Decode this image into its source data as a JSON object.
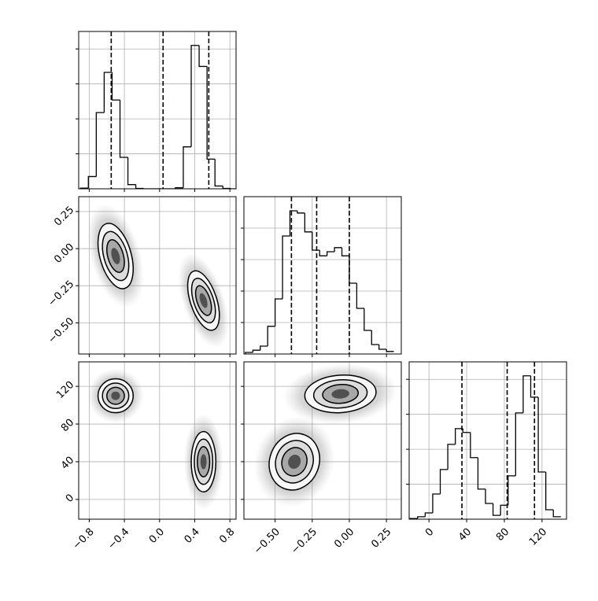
{
  "chart_data": {
    "type": "corner",
    "grid": true,
    "params": [
      {
        "lim": [
          -0.92,
          0.87
        ],
        "ticks": [
          {
            "value": -0.8,
            "label": "−0.8"
          },
          {
            "value": -0.4,
            "label": "−0.4"
          },
          {
            "value": 0,
            "label": "0.0"
          },
          0.4,
          0.8
        ]
      },
      {
        "lim": [
          -0.71,
          0.35
        ],
        "ticks": [
          {
            "value": -0.5,
            "label": "−0.50"
          },
          {
            "value": -0.25,
            "label": "−0.25"
          },
          {
            "value": 0,
            "label": "0.00"
          },
          0.25
        ]
      },
      {
        "lim": [
          -21,
          146
        ],
        "ticks": [
          0,
          40,
          80,
          120
        ]
      }
    ],
    "diag": [
      {
        "bins": [
          -0.9,
          -0.81,
          -0.72,
          -0.63,
          -0.54,
          -0.45,
          -0.36,
          -0.27,
          -0.18,
          -0.09,
          0,
          0.09,
          0.18,
          0.27,
          0.36,
          0.45,
          0.54,
          0.63,
          0.72,
          0.81,
          0.9
        ],
        "counts": [
          2,
          35,
          218,
          333,
          254,
          90,
          12,
          1,
          0,
          0,
          0,
          0,
          3,
          120,
          410,
          350,
          85,
          8,
          1,
          0
        ],
        "ylim": [
          0,
          450
        ],
        "yticks": [
          100,
          200,
          300,
          400
        ],
        "quantiles": [
          -0.55,
          0.04,
          0.56
        ]
      },
      {
        "bins": [
          -0.7,
          -0.65,
          -0.6,
          -0.55,
          -0.5,
          -0.45,
          -0.4,
          -0.35,
          -0.3,
          -0.25,
          -0.2,
          -0.15,
          -0.1,
          -0.05,
          0,
          0.05,
          0.1,
          0.15,
          0.2,
          0.25,
          0.3
        ],
        "counts": [
          5,
          12,
          25,
          88,
          175,
          375,
          455,
          448,
          388,
          330,
          312,
          325,
          338,
          312,
          225,
          145,
          75,
          30,
          15,
          8
        ],
        "ylim": [
          0,
          500
        ],
        "yticks": [
          100,
          200,
          300,
          400
        ],
        "quantiles": [
          -0.39,
          -0.22,
          0
        ]
      },
      {
        "bins": [
          -20,
          -12,
          -4,
          4,
          12,
          20,
          28,
          36,
          44,
          52,
          60,
          68,
          76,
          84,
          92,
          100,
          108,
          116,
          124,
          132,
          140
        ],
        "counts": [
          2,
          7,
          18,
          72,
          142,
          214,
          259,
          248,
          176,
          86,
          45,
          11,
          40,
          124,
          304,
          410,
          349,
          135,
          27,
          7
        ],
        "ylim": [
          0,
          450
        ],
        "yticks": [
          100,
          200,
          300,
          400
        ],
        "quantiles": [
          35,
          83,
          112
        ]
      }
    ],
    "pairs": [
      {
        "clusters": [
          {
            "x": -0.5,
            "y": -0.05,
            "sx": 0.1,
            "sy": 0.11,
            "rho": -0.4
          },
          {
            "x": 0.5,
            "y": -0.35,
            "sx": 0.09,
            "sy": 0.1,
            "rho": -0.5
          }
        ]
      },
      {
        "clusters": [
          {
            "x": -0.5,
            "y": 110,
            "sx": 0.1,
            "sy": 9,
            "rho": 0
          },
          {
            "x": 0.5,
            "y": 40,
            "sx": 0.07,
            "sy": 16,
            "rho": 0
          }
        ]
      },
      {
        "clusters": [
          {
            "x": -0.06,
            "y": 112,
            "sx": 0.12,
            "sy": 10,
            "rho": 0.1
          },
          {
            "x": -0.37,
            "y": 40,
            "sx": 0.085,
            "sy": 15,
            "rho": 0.1
          }
        ]
      }
    ]
  }
}
